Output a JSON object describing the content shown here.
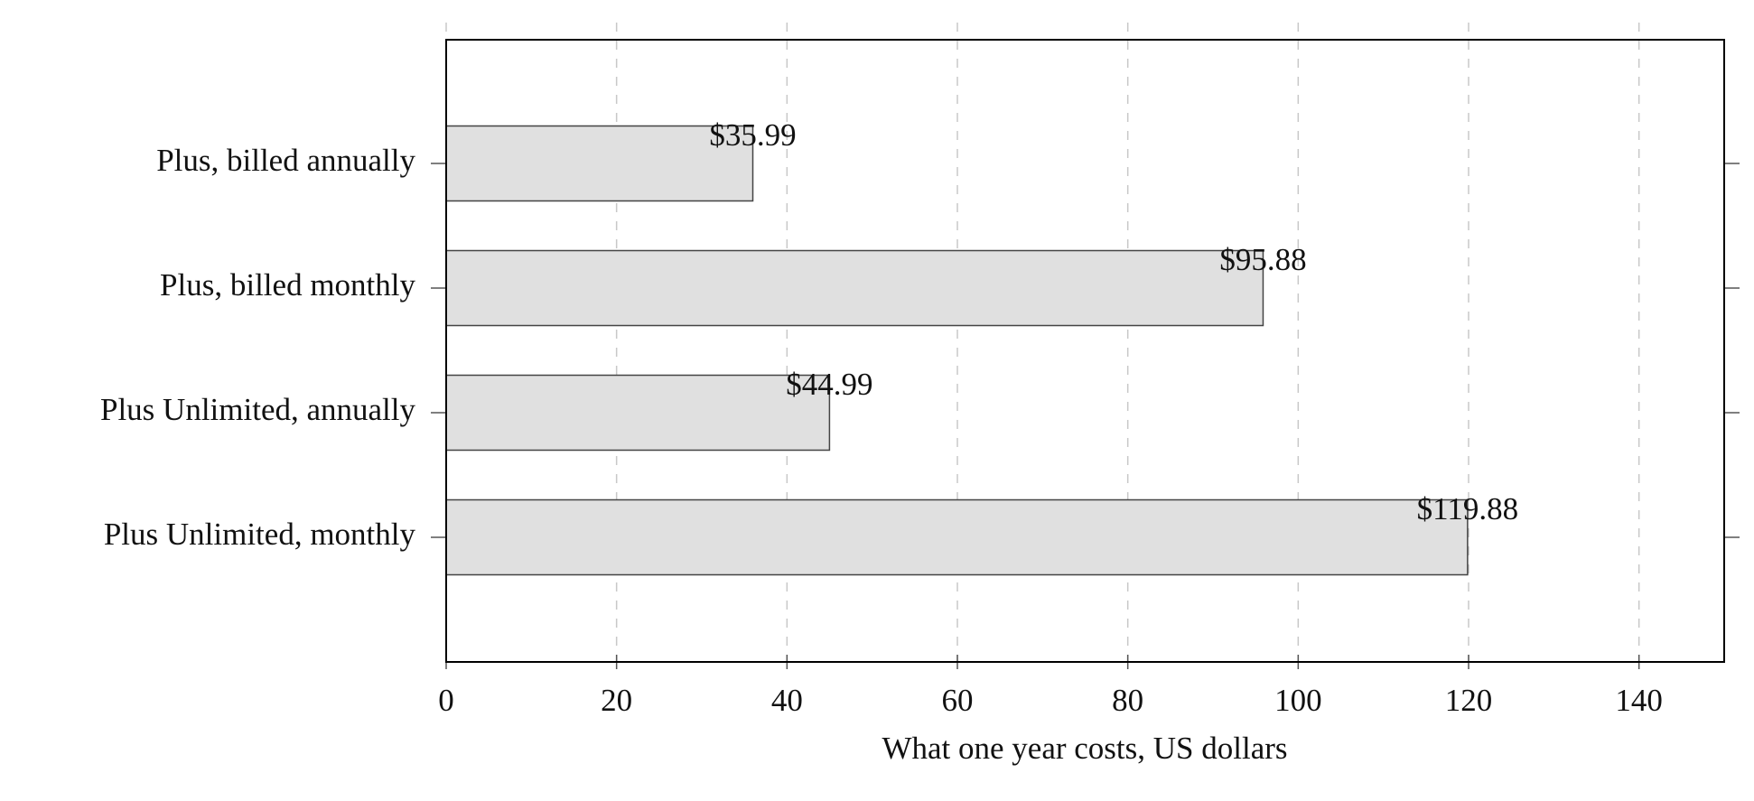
{
  "chart_data": {
    "type": "bar",
    "orientation": "horizontal",
    "xlabel": "What one year costs, US dollars",
    "categories": [
      "Plus, billed annually",
      "Plus, billed monthly",
      "Plus Unlimited, annually",
      "Plus Unlimited, monthly"
    ],
    "values": [
      35.99,
      95.88,
      44.99,
      119.88
    ],
    "value_labels": [
      "$35.99",
      "$95.88",
      "$44.99",
      "$119.88"
    ],
    "color": "#e0e0e0",
    "xlim": [
      0,
      150
    ],
    "xticks": [
      0,
      20,
      40,
      60,
      80,
      100,
      120,
      140
    ],
    "grid": true
  }
}
